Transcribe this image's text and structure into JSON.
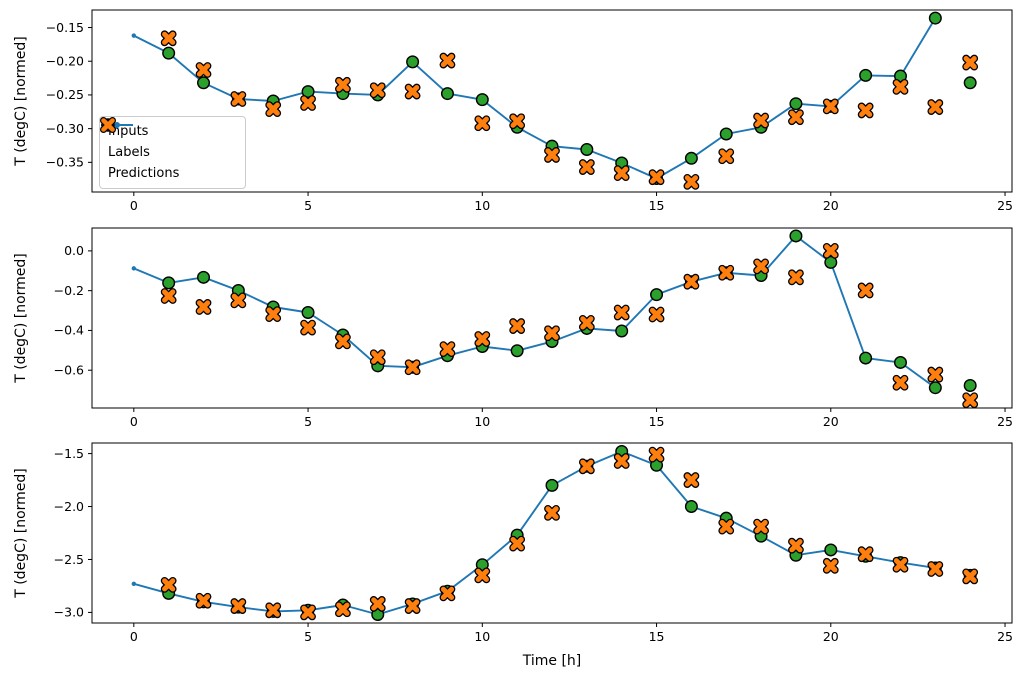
{
  "figure": {
    "xlabel": "Time [h]",
    "ylabel": "T (degC) [normed]",
    "background": "#ffffff",
    "colors": {
      "inputs": "#1f77b4",
      "labels": "#2ca02c",
      "predictions": "#ff7f0e",
      "marker_edge": "#000000",
      "spine": "#000000",
      "text": "#000000",
      "legend_border": "#cccccc"
    },
    "legend": {
      "entries": [
        {
          "label": "Inputs",
          "type": "line-dot"
        },
        {
          "label": "Labels",
          "type": "circle"
        },
        {
          "label": "Predictions",
          "type": "x"
        }
      ]
    }
  },
  "chart_data": [
    {
      "type": "line",
      "subplot": 1,
      "ylabel": "T (degC) [normed]",
      "xlabel": "",
      "xlim": [
        -1.2,
        25.2
      ],
      "ylim": [
        -0.394,
        -0.124
      ],
      "xticks": [
        0,
        5,
        10,
        15,
        20,
        25
      ],
      "xtick_labels": [
        "0",
        "5",
        "10",
        "15",
        "20",
        "25"
      ],
      "yticks": [
        -0.15,
        -0.2,
        -0.25,
        -0.3,
        -0.35
      ],
      "ytick_labels": [
        "−0.15",
        "−0.20",
        "−0.25",
        "−0.30",
        "−0.35"
      ],
      "grid": false,
      "legend_position": "center-left",
      "series": [
        {
          "name": "Inputs",
          "type": "line",
          "marker": "dot",
          "x": [
            0,
            1,
            2,
            3,
            4,
            5,
            6,
            7,
            8,
            9,
            10,
            11,
            12,
            13,
            14,
            15,
            16,
            17,
            18,
            19,
            20,
            21,
            22,
            23
          ],
          "y": [
            -0.162,
            -0.188,
            -0.232,
            -0.256,
            -0.259,
            -0.245,
            -0.248,
            -0.25,
            -0.201,
            -0.248,
            -0.257,
            -0.298,
            -0.326,
            -0.331,
            -0.351,
            -0.374,
            -0.344,
            -0.308,
            -0.298,
            -0.263,
            -0.267,
            -0.221,
            -0.222,
            -0.136
          ]
        },
        {
          "name": "Labels",
          "type": "scatter",
          "marker": "circle",
          "x": [
            1,
            2,
            3,
            4,
            5,
            6,
            7,
            8,
            9,
            10,
            11,
            12,
            13,
            14,
            15,
            16,
            17,
            18,
            19,
            20,
            21,
            22,
            23,
            24
          ],
          "y": [
            -0.188,
            -0.232,
            -0.256,
            -0.259,
            -0.245,
            -0.248,
            -0.25,
            -0.201,
            -0.248,
            -0.257,
            -0.298,
            -0.326,
            -0.331,
            -0.351,
            -0.374,
            -0.344,
            -0.308,
            -0.298,
            -0.263,
            -0.267,
            -0.221,
            -0.222,
            -0.136,
            -0.232
          ]
        },
        {
          "name": "Predictions",
          "type": "scatter",
          "marker": "X",
          "x": [
            1,
            2,
            3,
            4,
            5,
            6,
            7,
            8,
            9,
            10,
            11,
            12,
            13,
            14,
            15,
            16,
            17,
            18,
            19,
            20,
            21,
            22,
            23,
            24
          ],
          "y": [
            -0.166,
            -0.213,
            -0.256,
            -0.271,
            -0.262,
            -0.235,
            -0.243,
            -0.245,
            -0.199,
            -0.292,
            -0.289,
            -0.339,
            -0.357,
            -0.366,
            -0.372,
            -0.379,
            -0.341,
            -0.288,
            -0.283,
            -0.267,
            -0.273,
            -0.238,
            -0.268,
            -0.202
          ]
        }
      ]
    },
    {
      "type": "line",
      "subplot": 2,
      "ylabel": "T (degC) [normed]",
      "xlabel": "",
      "xlim": [
        -1.2,
        25.2
      ],
      "ylim": [
        -0.79,
        0.115
      ],
      "xticks": [
        0,
        5,
        10,
        15,
        20,
        25
      ],
      "xtick_labels": [
        "0",
        "5",
        "10",
        "15",
        "20",
        "25"
      ],
      "yticks": [
        0.0,
        -0.2,
        -0.4,
        -0.6
      ],
      "ytick_labels": [
        "0.0",
        "−0.2",
        "−0.4",
        "−0.6"
      ],
      "grid": false,
      "legend_position": "none",
      "series": [
        {
          "name": "Inputs",
          "type": "line",
          "marker": "dot",
          "x": [
            0,
            1,
            2,
            3,
            4,
            5,
            6,
            7,
            8,
            9,
            10,
            11,
            12,
            13,
            14,
            15,
            16,
            17,
            18,
            19,
            20,
            21,
            22,
            23
          ],
          "y": [
            -0.088,
            -0.161,
            -0.133,
            -0.199,
            -0.282,
            -0.31,
            -0.423,
            -0.578,
            -0.585,
            -0.527,
            -0.481,
            -0.502,
            -0.456,
            -0.39,
            -0.403,
            -0.22,
            -0.155,
            -0.11,
            -0.124,
            0.075,
            -0.058,
            -0.539,
            -0.561,
            -0.688
          ]
        },
        {
          "name": "Labels",
          "type": "scatter",
          "marker": "circle",
          "x": [
            1,
            2,
            3,
            4,
            5,
            6,
            7,
            8,
            9,
            10,
            11,
            12,
            13,
            14,
            15,
            16,
            17,
            18,
            19,
            20,
            21,
            22,
            23,
            24
          ],
          "y": [
            -0.161,
            -0.133,
            -0.199,
            -0.282,
            -0.31,
            -0.423,
            -0.578,
            -0.585,
            -0.527,
            -0.481,
            -0.502,
            -0.456,
            -0.39,
            -0.403,
            -0.22,
            -0.155,
            -0.11,
            -0.124,
            0.075,
            -0.058,
            -0.539,
            -0.561,
            -0.688,
            -0.677
          ]
        },
        {
          "name": "Predictions",
          "type": "scatter",
          "marker": "X",
          "x": [
            1,
            2,
            3,
            4,
            5,
            6,
            7,
            8,
            9,
            10,
            11,
            12,
            13,
            14,
            15,
            16,
            17,
            18,
            19,
            20,
            21,
            22,
            23,
            24
          ],
          "y": [
            -0.227,
            -0.282,
            -0.249,
            -0.318,
            -0.386,
            -0.455,
            -0.535,
            -0.585,
            -0.494,
            -0.443,
            -0.378,
            -0.414,
            -0.362,
            -0.31,
            -0.32,
            -0.155,
            -0.11,
            -0.078,
            -0.133,
            0.0,
            -0.199,
            -0.663,
            -0.622,
            -0.751
          ]
        }
      ]
    },
    {
      "type": "line",
      "subplot": 3,
      "ylabel": "T (degC) [normed]",
      "xlabel": "Time [h]",
      "xlim": [
        -1.2,
        25.2
      ],
      "ylim": [
        -3.1,
        -1.4
      ],
      "xticks": [
        0,
        5,
        10,
        15,
        20,
        25
      ],
      "xtick_labels": [
        "0",
        "5",
        "10",
        "15",
        "20",
        "25"
      ],
      "yticks": [
        -1.5,
        -2.0,
        -2.5,
        -3.0
      ],
      "ytick_labels": [
        "−1.5",
        "−2.0",
        "−2.5",
        "−3.0"
      ],
      "grid": false,
      "legend_position": "none",
      "series": [
        {
          "name": "Inputs",
          "type": "line",
          "marker": "dot",
          "x": [
            0,
            1,
            2,
            3,
            4,
            5,
            6,
            7,
            8,
            9,
            10,
            11,
            12,
            13,
            14,
            15,
            16,
            17,
            18,
            19,
            20,
            21,
            22,
            23
          ],
          "y": [
            -2.73,
            -2.82,
            -2.9,
            -2.95,
            -2.99,
            -2.98,
            -2.93,
            -3.02,
            -2.92,
            -2.8,
            -2.55,
            -2.27,
            -1.8,
            -1.62,
            -1.48,
            -1.61,
            -2.0,
            -2.11,
            -2.28,
            -2.46,
            -2.41,
            -2.47,
            -2.53,
            -2.58
          ]
        },
        {
          "name": "Labels",
          "type": "scatter",
          "marker": "circle",
          "x": [
            1,
            2,
            3,
            4,
            5,
            6,
            7,
            8,
            9,
            10,
            11,
            12,
            13,
            14,
            15,
            16,
            17,
            18,
            19,
            20,
            21,
            22,
            23,
            24
          ],
          "y": [
            -2.82,
            -2.9,
            -2.95,
            -2.99,
            -2.98,
            -2.93,
            -3.02,
            -2.92,
            -2.8,
            -2.55,
            -2.27,
            -1.8,
            -1.62,
            -1.48,
            -1.61,
            -2.0,
            -2.11,
            -2.28,
            -2.46,
            -2.41,
            -2.47,
            -2.53,
            -2.58,
            -2.65
          ]
        },
        {
          "name": "Predictions",
          "type": "scatter",
          "marker": "X",
          "x": [
            1,
            2,
            3,
            4,
            5,
            6,
            7,
            8,
            9,
            10,
            11,
            12,
            13,
            14,
            15,
            16,
            17,
            18,
            19,
            20,
            21,
            22,
            23,
            24
          ],
          "y": [
            -2.74,
            -2.89,
            -2.94,
            -2.98,
            -3.0,
            -2.97,
            -2.92,
            -2.94,
            -2.82,
            -2.65,
            -2.35,
            -2.06,
            -1.62,
            -1.57,
            -1.51,
            -1.75,
            -2.19,
            -2.19,
            -2.37,
            -2.56,
            -2.45,
            -2.55,
            -2.59,
            -2.66
          ]
        }
      ]
    }
  ]
}
